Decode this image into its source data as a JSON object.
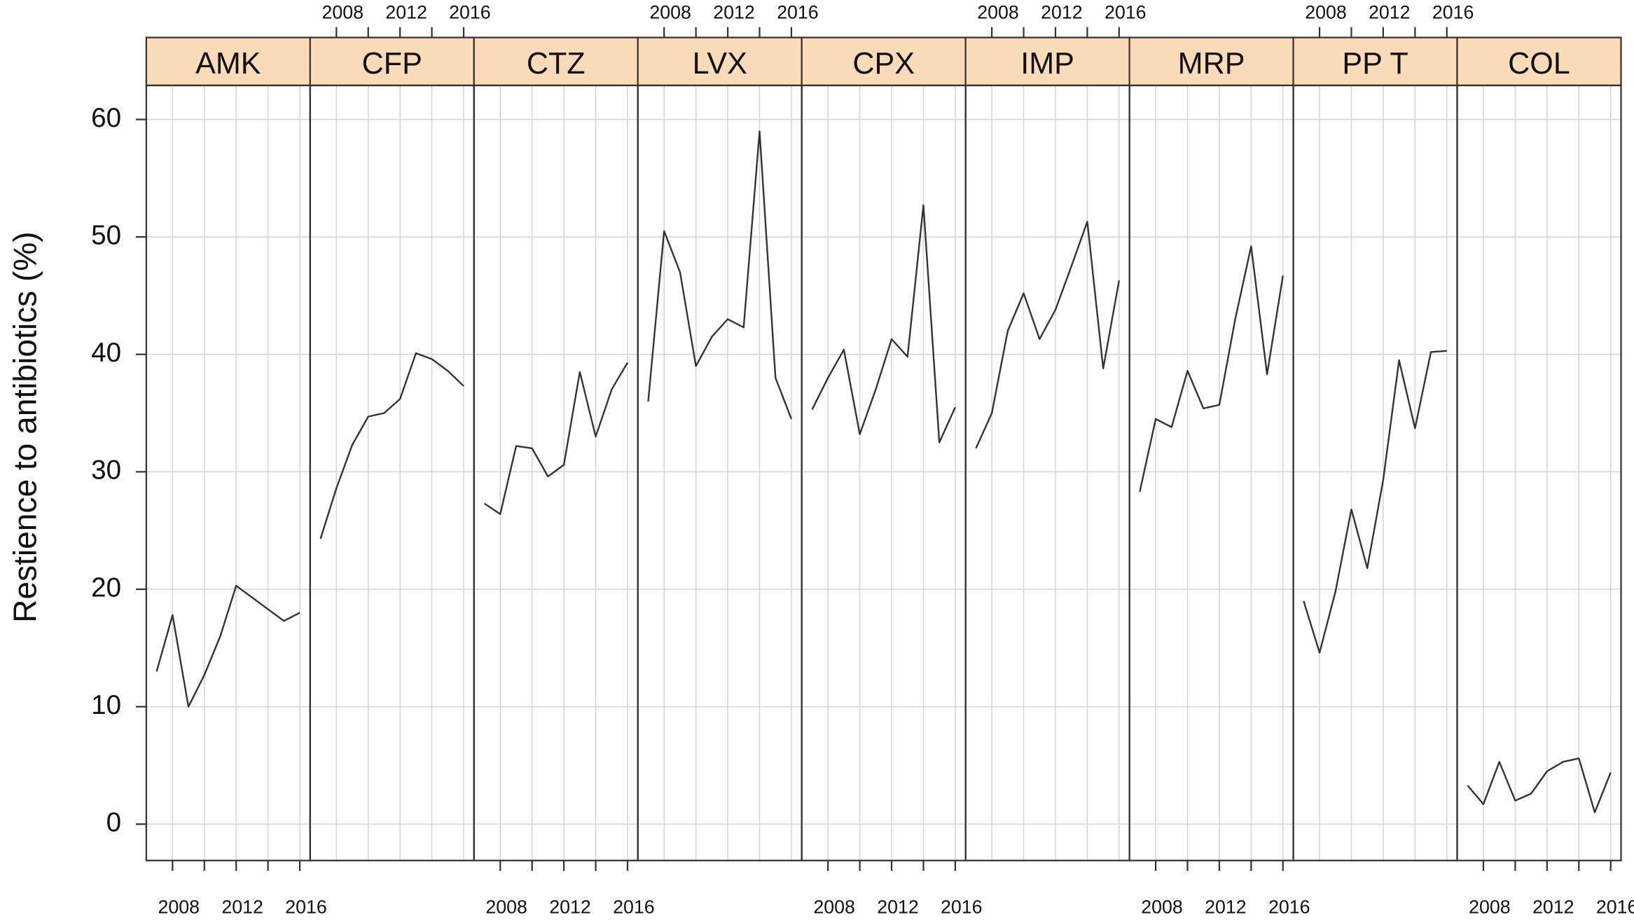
{
  "chart_data": {
    "type": "line",
    "y_label": "Restience to antibiotics (%)",
    "x": [
      2007,
      2008,
      2009,
      2010,
      2011,
      2012,
      2013,
      2014,
      2015,
      2016
    ],
    "xlim": [
      2006.35,
      2016.65
    ],
    "xticks": [
      2008,
      2012,
      2016
    ],
    "xminor_ticks": [
      2010,
      2014
    ],
    "ylim": [
      -3.1,
      62.9
    ],
    "yticks": [
      0,
      10,
      20,
      30,
      40,
      50,
      60
    ],
    "grid": true,
    "strip_color": "#fbdcb8",
    "line_color": "#333333",
    "series": [
      {
        "name": "AMK",
        "values": [
          13,
          17.8,
          10,
          12.7,
          16,
          20.3,
          19.3,
          18.3,
          17.3,
          18
        ]
      },
      {
        "name": "CFP",
        "values": [
          24.3,
          28.6,
          32.3,
          34.7,
          35,
          36.2,
          40.1,
          39.6,
          38.6,
          37.3
        ]
      },
      {
        "name": "CTZ",
        "values": [
          27.3,
          26.4,
          32.2,
          32,
          29.6,
          30.6,
          38.5,
          33,
          37,
          39.3
        ]
      },
      {
        "name": "LVX",
        "values": [
          36,
          50.5,
          47,
          39,
          41.5,
          43,
          42.3,
          59,
          38,
          34.5
        ]
      },
      {
        "name": "CPX",
        "values": [
          35.3,
          38,
          40.4,
          33.2,
          37,
          41.3,
          39.8,
          52.7,
          32.5,
          35.5
        ]
      },
      {
        "name": "IMP",
        "values": [
          32,
          35,
          42,
          45.2,
          41.3,
          43.8,
          47.5,
          51.3,
          38.8,
          46.3
        ]
      },
      {
        "name": "MRP",
        "values": [
          28.3,
          34.5,
          33.8,
          38.6,
          35.4,
          35.7,
          43,
          49.2,
          38.3,
          46.7
        ]
      },
      {
        "name": "PP T",
        "values": [
          19,
          14.6,
          19.8,
          26.8,
          21.8,
          29.3,
          39.5,
          33.7,
          40.2,
          40.3
        ]
      },
      {
        "name": "COL",
        "values": [
          3.3,
          1.7,
          5.3,
          2,
          2.6,
          4.5,
          5.3,
          5.6,
          1,
          4.4
        ]
      }
    ]
  }
}
